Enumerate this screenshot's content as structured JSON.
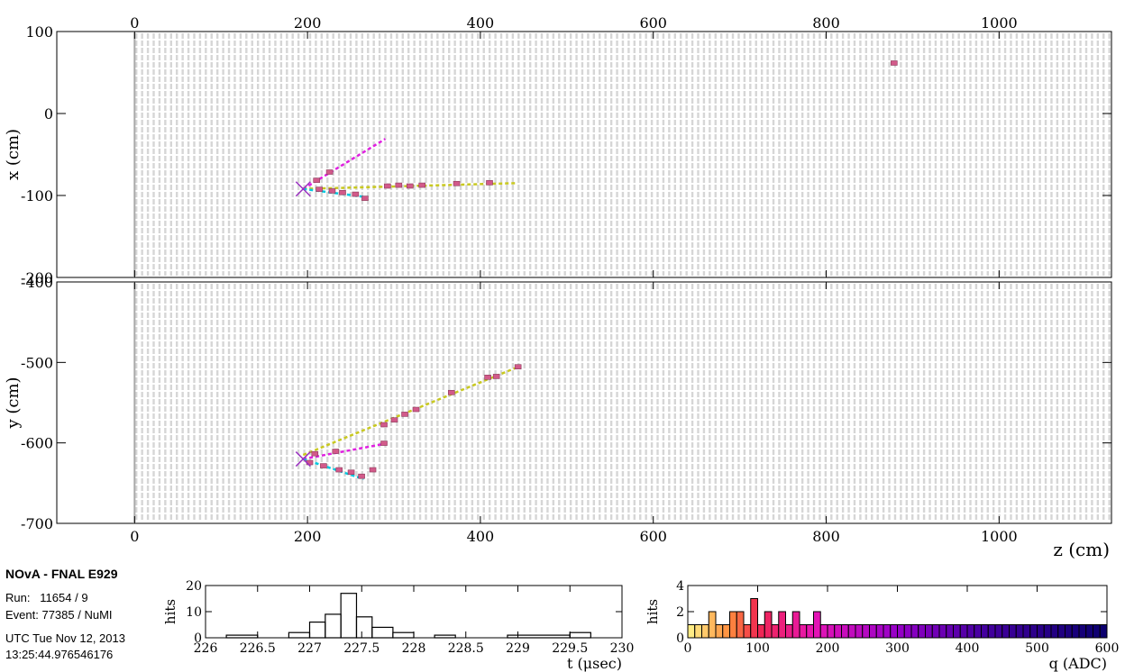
{
  "info": {
    "experiment": "NOvA - FNAL E929",
    "run": "Run:   11654 / 9",
    "event": "Event: 77385 / NuMI",
    "date": "UTC Tue Nov 12, 2013",
    "time": "13:25:44.976546176"
  },
  "chart_data": [
    {
      "type": "scatter",
      "name": "xz_view",
      "xlabel": "",
      "ylabel": "x (cm)",
      "xlim": [
        -90,
        1130
      ],
      "ylim": [
        -200,
        100
      ],
      "x_ticks": [
        0,
        200,
        400,
        600,
        800,
        1000
      ],
      "y_ticks": [
        100,
        0,
        -100,
        -200
      ],
      "vertex": [
        195,
        -92
      ],
      "hits": [
        [
          210,
          -82
        ],
        [
          225,
          -72
        ],
        [
          213,
          -93
        ],
        [
          228,
          -95
        ],
        [
          240,
          -97
        ],
        [
          255,
          -99
        ],
        [
          266,
          -104
        ],
        [
          292,
          -89
        ],
        [
          305,
          -88
        ],
        [
          318,
          -89
        ],
        [
          332,
          -88
        ],
        [
          372,
          -86
        ],
        [
          410,
          -85
        ],
        [
          878,
          61
        ]
      ],
      "tracks": [
        {
          "color": "#e020e0",
          "points": [
            [
              195,
              -92
            ],
            [
              290,
              -31
            ]
          ]
        },
        {
          "color": "#c8c820",
          "points": [
            [
              195,
              -92
            ],
            [
              440,
              -85
            ]
          ]
        },
        {
          "color": "#00c8e0",
          "points": [
            [
              195,
              -92
            ],
            [
              268,
              -102
            ]
          ]
        }
      ]
    },
    {
      "type": "scatter",
      "name": "yz_view",
      "xlabel": "z (cm)",
      "ylabel": "y (cm)",
      "xlim": [
        -90,
        1130
      ],
      "ylim": [
        -700,
        -400
      ],
      "x_ticks": [
        0,
        200,
        400,
        600,
        800,
        1000
      ],
      "y_ticks": [
        -400,
        -500,
        -600,
        -700
      ],
      "vertex": [
        195,
        -620
      ],
      "hits": [
        [
          208,
          -614
        ],
        [
          232,
          -611
        ],
        [
          288,
          -601
        ],
        [
          202,
          -625
        ],
        [
          218,
          -629
        ],
        [
          236,
          -634
        ],
        [
          250,
          -637
        ],
        [
          262,
          -642
        ],
        [
          275,
          -634
        ],
        [
          288,
          -578
        ],
        [
          300,
          -572
        ],
        [
          312,
          -565
        ],
        [
          325,
          -559
        ],
        [
          366,
          -538
        ],
        [
          408,
          -519
        ],
        [
          418,
          -518
        ],
        [
          443,
          -506
        ]
      ],
      "tracks": [
        {
          "color": "#e020e0",
          "points": [
            [
              195,
              -620
            ],
            [
              290,
              -601
            ]
          ]
        },
        {
          "color": "#c8c820",
          "points": [
            [
              195,
              -615
            ],
            [
              445,
              -505
            ]
          ]
        },
        {
          "color": "#00c8e0",
          "points": [
            [
              195,
              -620
            ],
            [
              265,
              -645
            ]
          ]
        }
      ]
    },
    {
      "type": "bar",
      "name": "time_histogram",
      "xlabel": "t (μsec)",
      "ylabel": "hits",
      "xlim": [
        226,
        230
      ],
      "ylim": [
        0,
        20
      ],
      "x_ticks": [
        "226",
        "226.5",
        "227",
        "227.5",
        "228",
        "228.5",
        "229",
        "229.5",
        "230"
      ],
      "y_ticks": [
        "20",
        "10",
        "0"
      ],
      "bins": [
        [
          226.2,
          226.5,
          1
        ],
        [
          226.8,
          227.0,
          2
        ],
        [
          227.0,
          227.15,
          6
        ],
        [
          227.15,
          227.3,
          9
        ],
        [
          227.3,
          227.45,
          17
        ],
        [
          227.45,
          227.6,
          8
        ],
        [
          227.6,
          227.8,
          4
        ],
        [
          227.8,
          228.0,
          2
        ],
        [
          228.2,
          228.4,
          1
        ],
        [
          228.9,
          229.5,
          1
        ],
        [
          229.5,
          229.7,
          2
        ]
      ]
    },
    {
      "type": "bar",
      "name": "charge_histogram",
      "xlabel": "q (ADC)",
      "ylabel": "hits",
      "xlim": [
        0,
        600
      ],
      "ylim": [
        0,
        4
      ],
      "x_ticks": [
        "0",
        "100",
        "200",
        "300",
        "400",
        "500",
        "600"
      ],
      "y_ticks": [
        "4",
        "2",
        "0"
      ],
      "bins": [
        [
          0,
          10,
          1
        ],
        [
          10,
          20,
          1
        ],
        [
          20,
          30,
          1
        ],
        [
          30,
          40,
          2
        ],
        [
          40,
          50,
          1
        ],
        [
          50,
          60,
          1
        ],
        [
          60,
          70,
          2
        ],
        [
          70,
          80,
          2
        ],
        [
          80,
          90,
          1
        ],
        [
          90,
          100,
          3
        ],
        [
          100,
          110,
          1
        ],
        [
          110,
          120,
          2
        ],
        [
          120,
          130,
          1
        ],
        [
          130,
          140,
          2
        ],
        [
          140,
          150,
          1
        ],
        [
          150,
          160,
          2
        ],
        [
          160,
          170,
          1
        ],
        [
          170,
          180,
          1
        ],
        [
          180,
          190,
          2
        ],
        [
          190,
          200,
          1
        ],
        [
          200,
          210,
          1
        ],
        [
          210,
          220,
          1
        ],
        [
          220,
          230,
          1
        ],
        [
          230,
          240,
          1
        ],
        [
          240,
          250,
          1
        ],
        [
          250,
          260,
          1
        ],
        [
          260,
          270,
          1
        ],
        [
          270,
          280,
          1
        ],
        [
          280,
          290,
          1
        ],
        [
          290,
          300,
          1
        ],
        [
          300,
          310,
          1
        ],
        [
          310,
          320,
          1
        ],
        [
          320,
          330,
          1
        ],
        [
          330,
          340,
          1
        ],
        [
          340,
          350,
          1
        ],
        [
          350,
          360,
          1
        ],
        [
          360,
          370,
          1
        ],
        [
          370,
          380,
          1
        ],
        [
          380,
          390,
          1
        ],
        [
          390,
          400,
          1
        ],
        [
          400,
          410,
          1
        ],
        [
          410,
          420,
          1
        ],
        [
          420,
          430,
          1
        ],
        [
          430,
          440,
          1
        ],
        [
          440,
          450,
          1
        ],
        [
          450,
          460,
          1
        ],
        [
          460,
          470,
          1
        ],
        [
          470,
          480,
          1
        ],
        [
          480,
          490,
          1
        ],
        [
          490,
          500,
          1
        ],
        [
          500,
          510,
          1
        ],
        [
          510,
          520,
          1
        ],
        [
          520,
          530,
          1
        ],
        [
          530,
          540,
          1
        ],
        [
          540,
          550,
          1
        ],
        [
          550,
          560,
          1
        ],
        [
          560,
          570,
          1
        ],
        [
          570,
          580,
          1
        ],
        [
          580,
          590,
          1
        ],
        [
          590,
          600,
          1
        ]
      ]
    }
  ]
}
